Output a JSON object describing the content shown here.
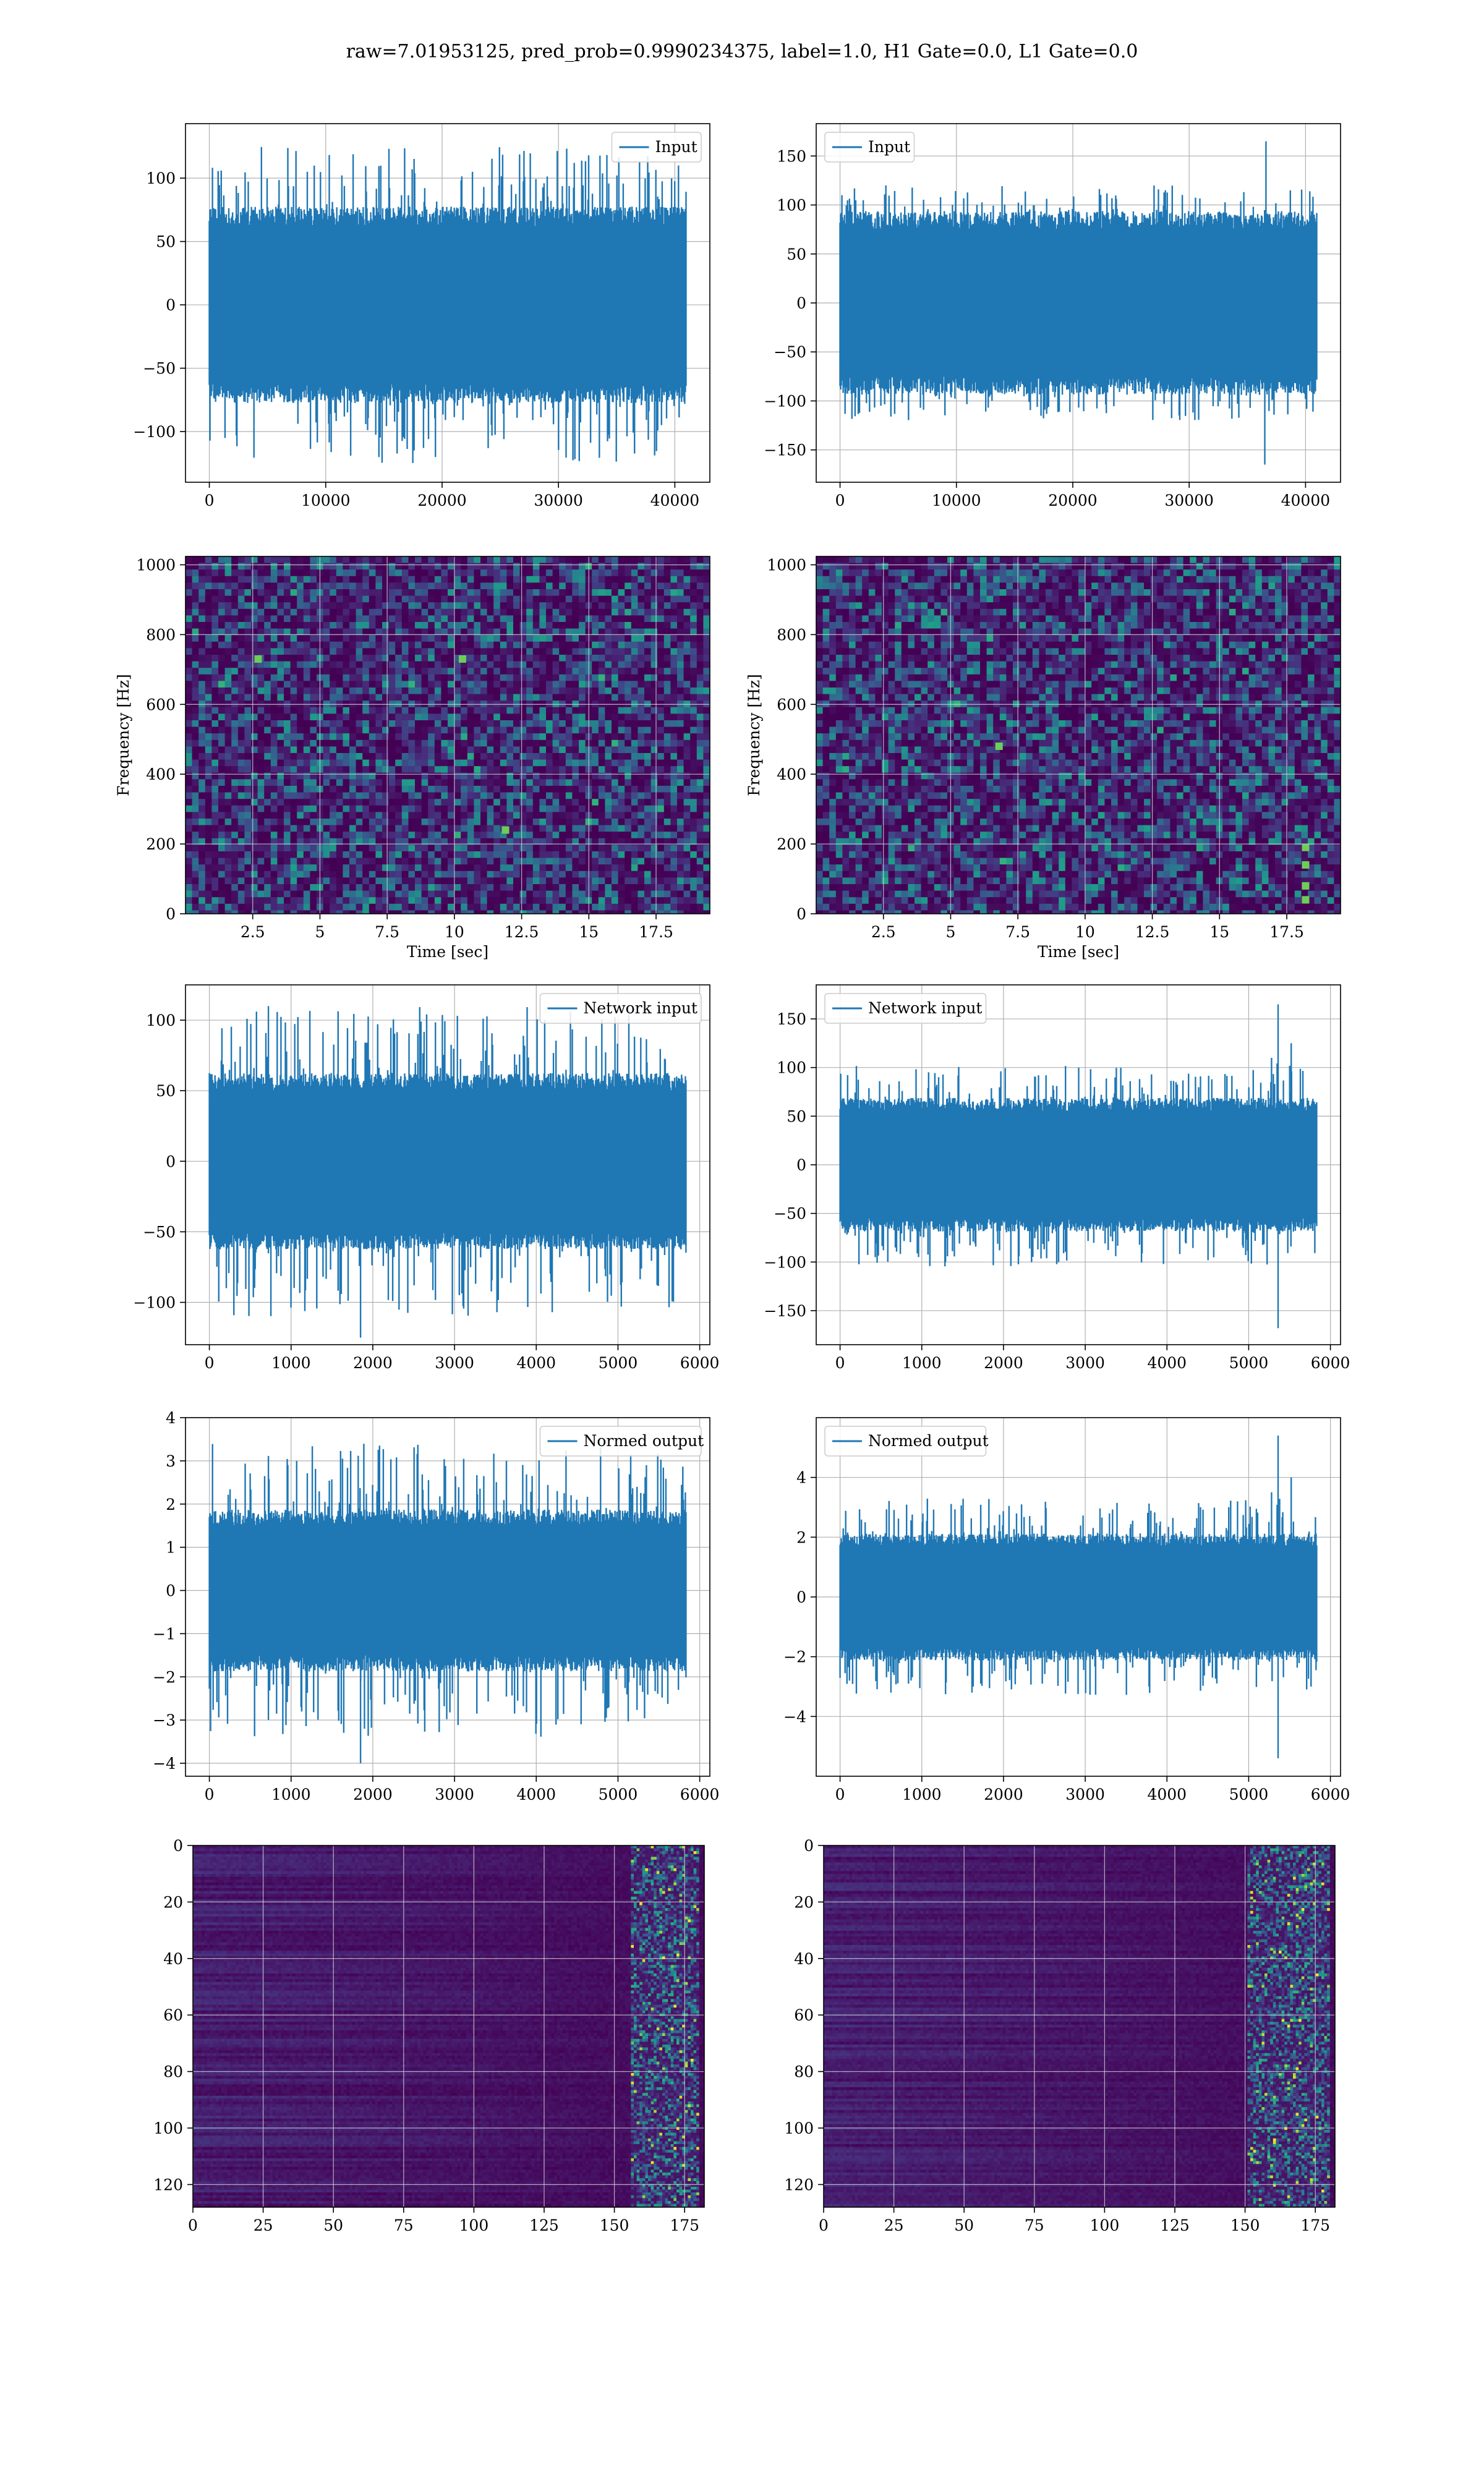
{
  "figure": {
    "suptitle": "raw=7.01953125, pred_prob=0.9990234375, label=1.0, H1 Gate=0.0, L1 Gate=0.0",
    "line_color": "#1f77b4",
    "colormap": "viridis",
    "grid": true
  },
  "chart_data": [
    {
      "id": "h1-input",
      "type": "line",
      "kind": "noise",
      "series": [
        {
          "name": "Input"
        }
      ],
      "legend": "top-right",
      "xlim": [
        -2048,
        43008
      ],
      "ylim": [
        -140,
        143
      ],
      "xticks": [
        0,
        10000,
        20000,
        30000,
        40000
      ],
      "yticks": [
        -100,
        -50,
        0,
        50,
        100
      ],
      "x_range": [
        0,
        40960
      ],
      "npoints": 760,
      "core": 62,
      "spikes": 125,
      "spike_events": [],
      "seed": 11
    },
    {
      "id": "l1-input",
      "type": "line",
      "kind": "noise",
      "series": [
        {
          "name": "Input"
        }
      ],
      "legend": "top-left",
      "xlim": [
        -2048,
        43008
      ],
      "ylim": [
        -183,
        183
      ],
      "xticks": [
        0,
        10000,
        20000,
        30000,
        40000
      ],
      "yticks": [
        -150,
        -100,
        -50,
        0,
        50,
        100,
        150
      ],
      "x_range": [
        0,
        40960
      ],
      "npoints": 760,
      "core": 75,
      "spikes": 120,
      "spike_events": [
        [
          36600,
          165
        ],
        [
          36500,
          -165
        ]
      ],
      "seed": 23
    },
    {
      "id": "h1-spectrogram",
      "type": "heatmap",
      "kind": "spectrogram",
      "xlabel": "Time [sec]",
      "ylabel": "Frequency [Hz]",
      "xlim": [
        0,
        19.5
      ],
      "ylim": [
        0,
        1024
      ],
      "xticks": [
        2.5,
        5.0,
        7.5,
        10.0,
        12.5,
        15.0,
        17.5
      ],
      "yticks": [
        0,
        200,
        400,
        600,
        800,
        1000
      ],
      "hotspots": [
        [
          10.3,
          730
        ],
        [
          2.7,
          730
        ],
        [
          11.9,
          240
        ]
      ],
      "seed": 31
    },
    {
      "id": "l1-spectrogram",
      "type": "heatmap",
      "kind": "spectrogram",
      "xlabel": "Time [sec]",
      "ylabel": "Frequency [Hz]",
      "xlim": [
        0,
        19.5
      ],
      "ylim": [
        0,
        1024
      ],
      "xticks": [
        2.5,
        5.0,
        7.5,
        10.0,
        12.5,
        15.0,
        17.5
      ],
      "yticks": [
        0,
        200,
        400,
        600,
        800,
        1000
      ],
      "hotspots": [
        [
          18.2,
          40
        ],
        [
          18.2,
          80
        ],
        [
          18.2,
          140
        ],
        [
          18.2,
          190
        ],
        [
          6.8,
          480
        ]
      ],
      "seed": 37
    },
    {
      "id": "h1-network-input",
      "type": "line",
      "kind": "noise",
      "series": [
        {
          "name": "Network input"
        }
      ],
      "legend": "top-right",
      "xlim": [
        -292,
        6124
      ],
      "ylim": [
        -130,
        125
      ],
      "xticks": [
        0,
        1000,
        2000,
        3000,
        4000,
        5000,
        6000
      ],
      "yticks": [
        -100,
        -50,
        0,
        50,
        100
      ],
      "x_range": [
        0,
        5832
      ],
      "npoints": 760,
      "core": 50,
      "spikes": 110,
      "spike_events": [
        [
          1850,
          -125
        ]
      ],
      "seed": 41
    },
    {
      "id": "l1-network-input",
      "type": "line",
      "kind": "noise",
      "series": [
        {
          "name": "Network input"
        }
      ],
      "legend": "top-left",
      "xlim": [
        -292,
        6124
      ],
      "ylim": [
        -185,
        185
      ],
      "xticks": [
        0,
        1000,
        2000,
        3000,
        4000,
        5000,
        6000
      ],
      "yticks": [
        -150,
        -100,
        -50,
        0,
        50,
        100,
        150
      ],
      "x_range": [
        0,
        5832
      ],
      "npoints": 760,
      "core": 55,
      "spikes": 105,
      "spike_events": [
        [
          5360,
          165
        ],
        [
          5360,
          -168
        ],
        [
          5520,
          125
        ],
        [
          5280,
          110
        ]
      ],
      "seed": 43
    },
    {
      "id": "h1-normed-output",
      "type": "line",
      "kind": "noise",
      "series": [
        {
          "name": "Normed output"
        }
      ],
      "legend": "top-right",
      "xlim": [
        -292,
        6124
      ],
      "ylim": [
        -4.3,
        4.0
      ],
      "xticks": [
        0,
        1000,
        2000,
        3000,
        4000,
        5000,
        6000
      ],
      "yticks": [
        -4,
        -3,
        -2,
        -1,
        0,
        1,
        2,
        3,
        4
      ],
      "x_range": [
        0,
        5832
      ],
      "npoints": 760,
      "core": 1.5,
      "spikes": 3.4,
      "spike_events": [
        [
          1850,
          -4.0
        ]
      ],
      "seed": 47
    },
    {
      "id": "l1-normed-output",
      "type": "line",
      "kind": "noise",
      "series": [
        {
          "name": "Normed output"
        }
      ],
      "legend": "top-left",
      "xlim": [
        -292,
        6124
      ],
      "ylim": [
        -6.0,
        6.0
      ],
      "xticks": [
        0,
        1000,
        2000,
        3000,
        4000,
        5000,
        6000
      ],
      "yticks": [
        -4,
        -2,
        0,
        2,
        4
      ],
      "x_range": [
        0,
        5832
      ],
      "npoints": 760,
      "core": 1.7,
      "spikes": 3.3,
      "spike_events": [
        [
          5360,
          5.4
        ],
        [
          5360,
          -5.4
        ],
        [
          5520,
          4.0
        ],
        [
          5280,
          3.5
        ]
      ],
      "seed": 53
    },
    {
      "id": "h1-feature-map",
      "type": "heatmap",
      "kind": "featuremap",
      "xlim": [
        0,
        182
      ],
      "ylim": [
        128,
        0
      ],
      "xticks": [
        0,
        25,
        50,
        75,
        100,
        125,
        150,
        175
      ],
      "yticks": [
        0,
        20,
        40,
        60,
        80,
        100,
        120
      ],
      "bright_band": [
        155,
        180
      ],
      "seed": 59
    },
    {
      "id": "l1-feature-map",
      "type": "heatmap",
      "kind": "featuremap",
      "xlim": [
        0,
        182
      ],
      "ylim": [
        128,
        0
      ],
      "xticks": [
        0,
        25,
        50,
        75,
        100,
        125,
        150,
        175
      ],
      "yticks": [
        0,
        20,
        40,
        60,
        80,
        100,
        120
      ],
      "bright_band": [
        150,
        180
      ],
      "seed": 61
    }
  ]
}
